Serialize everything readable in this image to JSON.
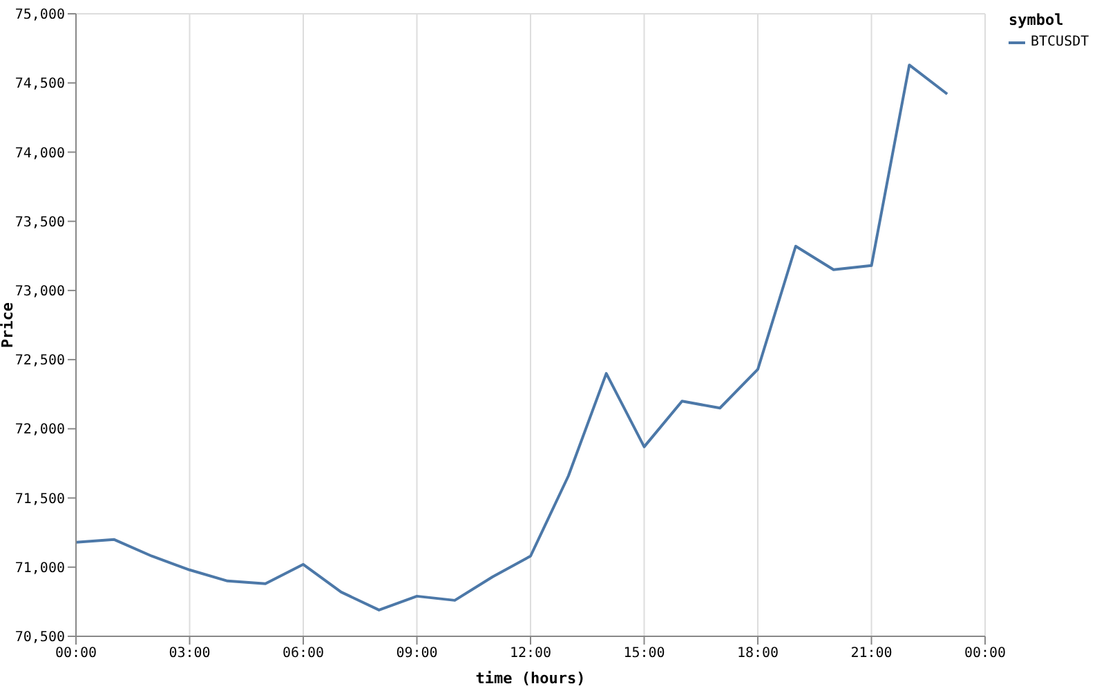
{
  "chart_data": {
    "type": "line",
    "xlabel": "time (hours)",
    "ylabel": "Price",
    "legend_title": "symbol",
    "legend": "top right",
    "grid": "x",
    "marker": "none",
    "line_style": "solid",
    "x": [
      0,
      1,
      2,
      3,
      4,
      5,
      6,
      7,
      8,
      9,
      10,
      11,
      12,
      13,
      14,
      15,
      16,
      17,
      18,
      19,
      20,
      21,
      22,
      23
    ],
    "series": [
      {
        "name": "BTCUSDT",
        "color": "#4c78a8",
        "values": [
          71180,
          71200,
          71080,
          70980,
          70900,
          70880,
          71020,
          70820,
          70690,
          70790,
          70760,
          70930,
          71080,
          71660,
          72400,
          71870,
          72200,
          72150,
          72430,
          73320,
          73150,
          73180,
          74630,
          74420
        ]
      }
    ],
    "xlim": [
      0,
      24
    ],
    "xticks": [
      {
        "value": 0,
        "label": "00:00"
      },
      {
        "value": 3,
        "label": "03:00"
      },
      {
        "value": 6,
        "label": "06:00"
      },
      {
        "value": 9,
        "label": "09:00"
      },
      {
        "value": 12,
        "label": "12:00"
      },
      {
        "value": 15,
        "label": "15:00"
      },
      {
        "value": 18,
        "label": "18:00"
      },
      {
        "value": 21,
        "label": "21:00"
      },
      {
        "value": 24,
        "label": "00:00"
      }
    ],
    "ylim": [
      70500,
      75000
    ],
    "yticks": [
      {
        "value": 70500,
        "label": "70,500"
      },
      {
        "value": 71000,
        "label": "71,000"
      },
      {
        "value": 71500,
        "label": "71,500"
      },
      {
        "value": 72000,
        "label": "72,000"
      },
      {
        "value": 72500,
        "label": "72,500"
      },
      {
        "value": 73000,
        "label": "73,000"
      },
      {
        "value": 73500,
        "label": "73,500"
      },
      {
        "value": 74000,
        "label": "74,000"
      },
      {
        "value": 74500,
        "label": "74,500"
      },
      {
        "value": 75000,
        "label": "75,000"
      }
    ]
  }
}
